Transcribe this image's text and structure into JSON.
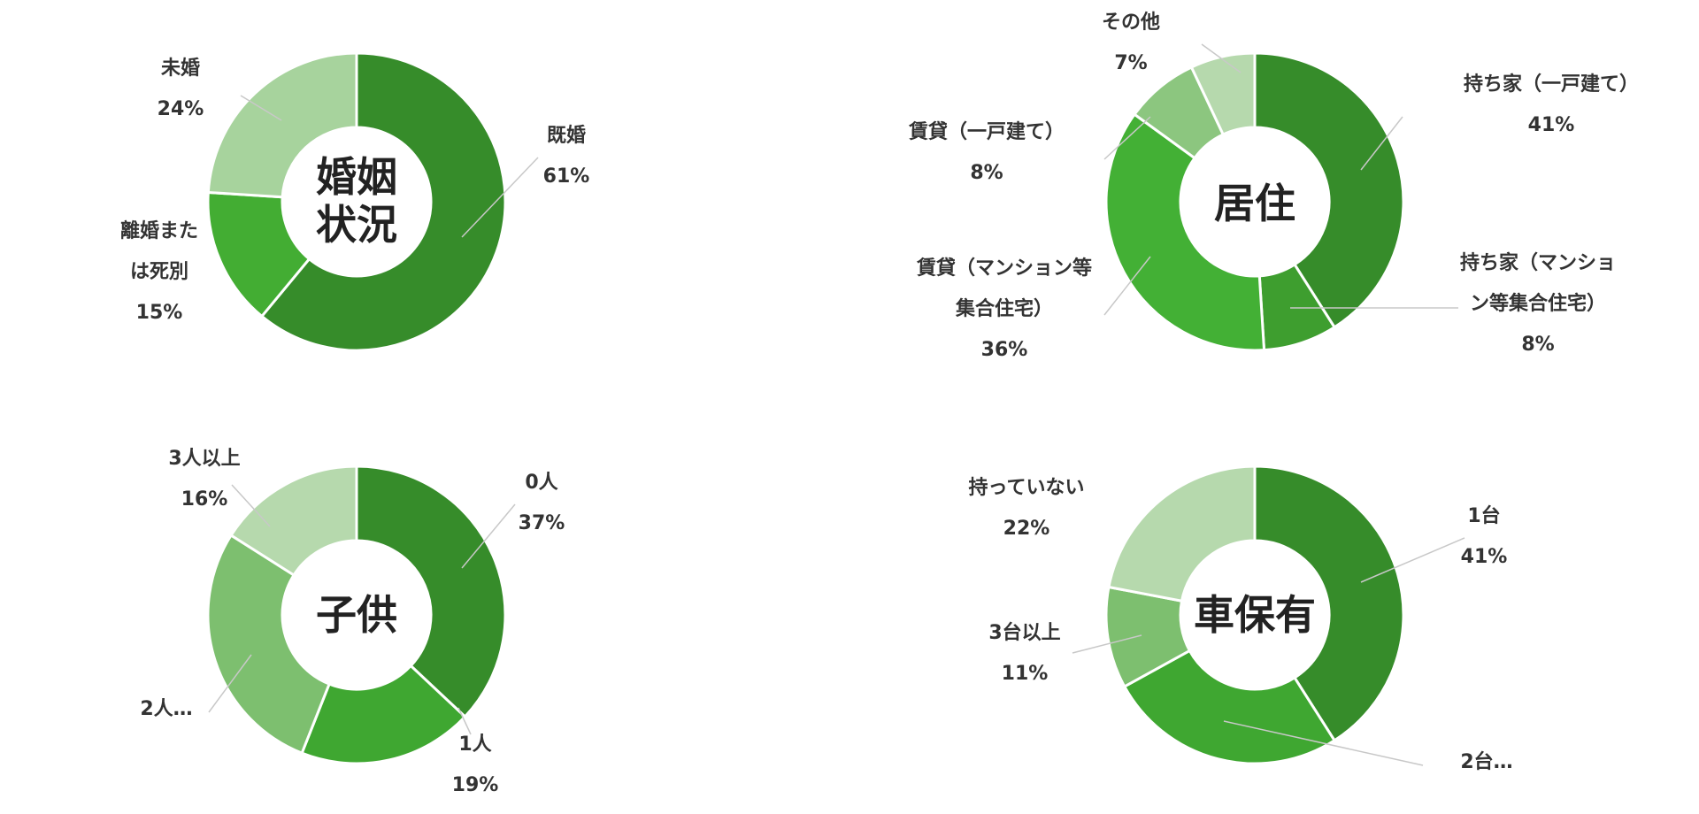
{
  "chart_data": [
    {
      "type": "pie",
      "donut": true,
      "center_label": [
        "婚姻",
        "状況"
      ],
      "slices": [
        {
          "label": [
            "既婚",
            "61%"
          ],
          "value": 61,
          "color": "#368c2a"
        },
        {
          "label": [
            "離婚また",
            "は死別",
            "15%"
          ],
          "value": 15,
          "color": "#43ad33"
        },
        {
          "label": [
            "未婚",
            "24%"
          ],
          "value": 24,
          "color": "#a7d39d"
        }
      ]
    },
    {
      "type": "pie",
      "donut": true,
      "center_label": [
        "居住"
      ],
      "slices": [
        {
          "label": [
            "持ち家（一戸建て）",
            "41%"
          ],
          "value": 41,
          "color": "#368c2a"
        },
        {
          "label": [
            "持ち家（マンショ",
            "ン等集合住宅）",
            "8%"
          ],
          "value": 8,
          "color": "#3e9e2f"
        },
        {
          "label": [
            "賃貸（マンション等",
            "集合住宅）",
            "36%"
          ],
          "value": 36,
          "color": "#43b035"
        },
        {
          "label": [
            "賃貸（一戸建て）",
            "8%"
          ],
          "value": 8,
          "color": "#8cc67f"
        },
        {
          "label": [
            "その他",
            "7%"
          ],
          "value": 7,
          "color": "#b6d9ad"
        }
      ]
    },
    {
      "type": "pie",
      "donut": true,
      "center_label": [
        "子供"
      ],
      "slices": [
        {
          "label": [
            "0人",
            "37%"
          ],
          "value": 37,
          "color": "#368c2a"
        },
        {
          "label": [
            "1人",
            "19%"
          ],
          "value": 19,
          "color": "#3fa731"
        },
        {
          "label": [
            "2人…"
          ],
          "value": 28,
          "color": "#7dbf6f"
        },
        {
          "label": [
            "3人以上",
            "16%"
          ],
          "value": 16,
          "color": "#b6d9ad"
        }
      ]
    },
    {
      "type": "pie",
      "donut": true,
      "center_label": [
        "車保有"
      ],
      "slices": [
        {
          "label": [
            "1台",
            "41%"
          ],
          "value": 41,
          "color": "#368c2a"
        },
        {
          "label": [
            "2台…"
          ],
          "value": 26,
          "color": "#3fa731"
        },
        {
          "label": [
            "3台以上",
            "11%"
          ],
          "value": 11,
          "color": "#7dbf6f"
        },
        {
          "label": [
            "持っていない",
            "22%"
          ],
          "value": 22,
          "color": "#b6d9ad"
        }
      ]
    }
  ]
}
